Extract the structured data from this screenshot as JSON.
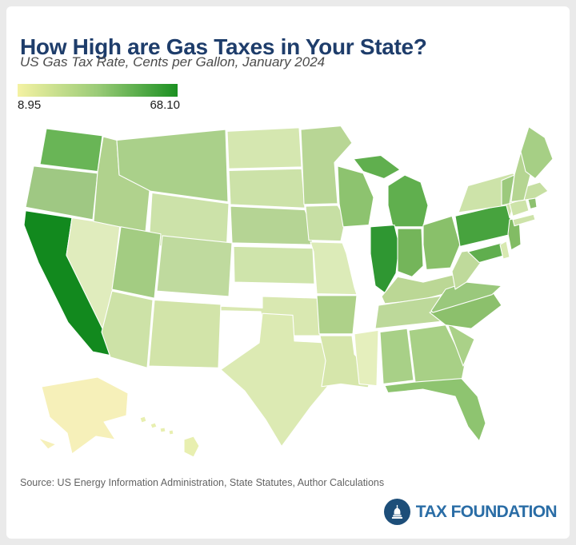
{
  "header": {
    "title": "How High are Gas Taxes in Your State?",
    "subtitle": "US Gas Tax Rate, Cents per Gallon, January 2024"
  },
  "legend": {
    "min_label": "8.95",
    "max_label": "68.10",
    "gradient": [
      "#f4f2a3",
      "#9acb77",
      "#1b9021"
    ]
  },
  "footer": {
    "source": "Source: US Energy Information Administration, State Statutes, Author Calculations",
    "brand": "TAX FOUNDATION"
  },
  "colors": {
    "title": "#1e3d6b",
    "subtitle": "#4b4b4b",
    "source": "#636363",
    "brand_blue": "#2a6da6",
    "brand_navy": "#1d4e79",
    "card_bg": "#ffffff",
    "page_bg": "#eaeaea",
    "state_border": "#ffffff"
  },
  "chart_data": {
    "type": "choropleth_map",
    "title": "How High are Gas Taxes in Your State?",
    "subtitle": "US Gas Tax Rate, Cents per Gallon, January 2024",
    "legend": {
      "min": 8.95,
      "max": 68.1,
      "min_state": "Alaska",
      "max_state": "California"
    },
    "states": [
      {
        "abbr": "WA",
        "name": "Washington",
        "fill": "#69b556",
        "group": "main",
        "polys": [
          "28,8 98,16 92,56 20,48"
        ]
      },
      {
        "abbr": "OR",
        "name": "Oregon",
        "fill": "#9fc883",
        "group": "main",
        "polys": [
          "12,50 92,58 86,110 2,96"
        ]
      },
      {
        "abbr": "CA",
        "name": "California",
        "fill": "#12891e",
        "group": "main",
        "polys": [
          "2,100 60,108 53,150 110,232 108,262 86,258 55,225 18,158 0,116"
        ]
      },
      {
        "abbr": "NV",
        "name": "Nevada",
        "fill": "#e0ecbd",
        "group": "main",
        "polys": [
          "60,108 120,116 109,200 98,232 53,150"
        ]
      },
      {
        "abbr": "ID",
        "name": "Idaho",
        "fill": "#b0d28d",
        "group": "main",
        "polys": [
          "99,17 116,21 119,60 158,68 152,124 87,112 92,56"
        ]
      },
      {
        "abbr": "MT",
        "name": "Montana",
        "fill": "#aad08a",
        "group": "main",
        "polys": [
          "116,21 252,9 255,90 158,78 119,60"
        ]
      },
      {
        "abbr": "WY",
        "name": "Wyoming",
        "fill": "#cce2a9",
        "group": "main",
        "polys": [
          "160,80 256,92 253,148 156,138"
        ]
      },
      {
        "abbr": "UT",
        "name": "Utah",
        "fill": "#a3cc82",
        "group": "main",
        "polys": [
          "121,118 171,126 163,198 110,188"
        ]
      },
      {
        "abbr": "CO",
        "name": "Colorado",
        "fill": "#bfda9e",
        "group": "main",
        "polys": [
          "173,128 260,136 256,196 166,190"
        ]
      },
      {
        "abbr": "AZ",
        "name": "Arizona",
        "fill": "#cde2a7",
        "group": "main",
        "polys": [
          "110,190 161,200 154,276 108,264 97,236"
        ]
      },
      {
        "abbr": "NM",
        "name": "New Mexico",
        "fill": "#d2e4a9",
        "group": "main",
        "polys": [
          "163,200 246,205 243,276 156,274"
        ]
      },
      {
        "abbr": "ND",
        "name": "North Dakota",
        "fill": "#d5e7b0",
        "group": "main",
        "polys": [
          "254,11 344,7 347,51 256,53"
        ]
      },
      {
        "abbr": "SD",
        "name": "South Dakota",
        "fill": "#cce2a8",
        "group": "main",
        "polys": [
          "256,55 347,53 351,97 258,93"
        ]
      },
      {
        "abbr": "NE",
        "name": "Nebraska",
        "fill": "#b5d494",
        "group": "main",
        "polys": [
          "258,95 351,99 357,112 361,138 260,136"
        ]
      },
      {
        "abbr": "KS",
        "name": "Kansas",
        "fill": "#cfe4ab",
        "group": "main",
        "polys": [
          "262,140 361,142 363,182 263,180"
        ]
      },
      {
        "abbr": "OK",
        "name": "Oklahoma",
        "fill": "#d9e8b1",
        "group": "main",
        "polys": [
          "246,207 298,209 298,196 368,198 370,240 330,240 300,233 296,213 246,212"
        ]
      },
      {
        "abbr": "TX",
        "name": "Texas",
        "fill": "#dceab3",
        "group": "main",
        "polys": [
          "298,215 336,217 338,246 378,248 384,292 358,320 322,364 302,334 276,302 246,278 294,248"
        ]
      },
      {
        "abbr": "MN",
        "name": "Minnesota",
        "fill": "#b8d695",
        "group": "main",
        "polys": [
          "346,9 396,5 410,24 388,46 392,92 350,93 348,50"
        ]
      },
      {
        "abbr": "IA",
        "name": "Iowa",
        "fill": "#c7dfa4",
        "group": "main",
        "polys": [
          "352,95 392,94 402,109 396,134 356,133"
        ]
      },
      {
        "abbr": "MO",
        "name": "Missouri",
        "fill": "#dcebb8",
        "group": "main",
        "polys": [
          "358,135 398,136 403,148 413,186 416,194 366,193 362,146"
        ]
      },
      {
        "abbr": "AR",
        "name": "Arkansas",
        "fill": "#aed189",
        "group": "main",
        "polys": [
          "366,195 416,195 411,238 369,238"
        ]
      },
      {
        "abbr": "LA",
        "name": "Louisiana",
        "fill": "#d6e6ab",
        "group": "main",
        "polys": [
          "370,240 410,240 413,261 436,282 430,298 396,294 372,297 377,268"
        ]
      },
      {
        "abbr": "WI",
        "name": "Wisconsin",
        "fill": "#8dc36f",
        "group": "main",
        "polys": [
          "392,50 424,58 437,85 431,116 399,118 394,92"
        ]
      },
      {
        "abbr": "MI",
        "name": "Michigan",
        "fill": "#60af4e",
        "group": "main",
        "polys": [
          "412,42 446,38 470,54 450,64 424,56",
          "455,72 476,60 496,68 505,94 499,118 461,118 455,94"
        ]
      },
      {
        "abbr": "IL",
        "name": "Illinois",
        "fill": "#2f9732",
        "group": "main",
        "polys": [
          "433,118 463,116 469,138 465,170 451,192 439,184 433,148"
        ]
      },
      {
        "abbr": "IN",
        "name": "Indiana",
        "fill": "#74b55a",
        "group": "main",
        "polys": [
          "467,120 497,120 499,162 485,174 467,168"
        ]
      },
      {
        "abbr": "OH",
        "name": "Ohio",
        "fill": "#89c06a",
        "group": "main",
        "polys": [
          "499,116 535,106 545,138 533,164 503,166 499,138"
        ]
      },
      {
        "abbr": "KY",
        "name": "Kentucky",
        "fill": "#bbd795",
        "group": "main",
        "polys": [
          "447,196 467,174 499,180 545,170 539,190 495,200 451,204"
        ]
      },
      {
        "abbr": "TN",
        "name": "Tennessee",
        "fill": "#bdd99a",
        "group": "main",
        "polys": [
          "443,206 547,192 551,197 543,222 439,232"
        ]
      },
      {
        "abbr": "MS",
        "name": "Mississippi",
        "fill": "#e5efbd",
        "group": "main",
        "polys": [
          "413,238 443,234 441,296 419,294 415,260"
        ]
      },
      {
        "abbr": "AL",
        "name": "Alabama",
        "fill": "#a8d087",
        "group": "main",
        "polys": [
          "445,236 479,232 487,290 449,294"
        ]
      },
      {
        "abbr": "GA",
        "name": "Georgia",
        "fill": "#a8d086",
        "group": "main",
        "polys": [
          "481,234 527,228 551,272 547,290 489,292"
        ]
      },
      {
        "abbr": "FL",
        "name": "Florida",
        "fill": "#8ec470",
        "group": "main",
        "polys": [
          "451,296 487,292 547,288 567,308 577,338 569,358 555,342 539,308 499,300 455,304"
        ]
      },
      {
        "abbr": "SC",
        "name": "South Carolina",
        "fill": "#aad188",
        "group": "main",
        "polys": [
          "529,226 563,244 549,274"
        ]
      },
      {
        "abbr": "NC",
        "name": "North Carolina",
        "fill": "#8cc06c",
        "group": "main",
        "polys": [
          "507,214 585,190 597,206 559,232 527,228"
        ]
      },
      {
        "abbr": "VA",
        "name": "Virginia",
        "fill": "#9ac87c",
        "group": "main",
        "polys": [
          "509,212 527,188 553,180 597,184 585,194 511,214"
        ]
      },
      {
        "abbr": "WV",
        "name": "West Virginia",
        "fill": "#bfda9b",
        "group": "main",
        "polys": [
          "535,168 547,146 563,144 571,158 553,180 539,188"
        ]
      },
      {
        "abbr": "MD",
        "name": "Maryland",
        "fill": "#60ae4e",
        "group": "main",
        "polys": [
          "555,146 597,136 601,150 569,158"
        ]
      },
      {
        "abbr": "DE",
        "name": "Delaware",
        "fill": "#d8e9b1",
        "group": "main",
        "polys": [
          "595,138 603,134 607,152 599,154"
        ]
      },
      {
        "abbr": "PA",
        "name": "Pennsylvania",
        "fill": "#47a33e",
        "group": "main",
        "polys": [
          "539,106 605,92 611,126 545,140"
        ]
      },
      {
        "abbr": "NJ",
        "name": "New Jersey",
        "fill": "#82bc64",
        "group": "main",
        "polys": [
          "607,110 619,108 621,138 609,144 605,126"
        ]
      },
      {
        "abbr": "NY",
        "name": "New York",
        "fill": "#cde3a9",
        "group": "main",
        "polys": [
          "543,102 555,72 611,58 625,70 613,90 607,108 603,94",
          "611,110 637,104 639,110 613,117"
        ]
      },
      {
        "abbr": "CT",
        "name": "Connecticut",
        "fill": "#cde3a9",
        "group": "main",
        "polys": [
          "607,92 627,86 631,100 611,106"
        ]
      },
      {
        "abbr": "RI",
        "name": "Rhode Island",
        "fill": "#8dc16f",
        "group": "main",
        "polys": [
          "629,84 639,82 641,96 633,98"
        ]
      },
      {
        "abbr": "MA",
        "name": "Massachusetts",
        "fill": "#c6dfa2",
        "group": "main",
        "polys": [
          "609,78 645,68 655,78 639,86 611,90"
        ]
      },
      {
        "abbr": "VT",
        "name": "Vermont",
        "fill": "#9cc97d",
        "group": "main",
        "polys": [
          "597,66 613,60 607,92 597,94"
        ]
      },
      {
        "abbr": "NH",
        "name": "New Hampshire",
        "fill": "#b5d592",
        "group": "main",
        "polys": [
          "613,60 621,34 633,60 625,88 609,90"
        ]
      },
      {
        "abbr": "ME",
        "name": "Maine",
        "fill": "#a6cf85",
        "group": "main",
        "polys": [
          "621,34 631,6 651,18 661,42 639,64 627,56"
        ]
      },
      {
        "abbr": "AK",
        "name": "Alaska",
        "fill": "#f6f0b9",
        "group": "inset",
        "polys": [
          "22,332 92,320 130,340 128,368 100,376 114,398 90,394 60,416 54,390 32,370",
          "18,396 40,404 30,410"
        ]
      },
      {
        "abbr": "HI",
        "name": "Hawaii",
        "fill": "#e8efb0",
        "group": "inset",
        "polys": [
          "145,371 151,369 153,375 147,377",
          "158,379 164,377 166,382 160,384",
          "170,384 176,383 177,388 171,389",
          "181,387 186,386 187,391 182,392",
          "200,398 212,394 219,406 212,420 200,414"
        ]
      }
    ]
  }
}
